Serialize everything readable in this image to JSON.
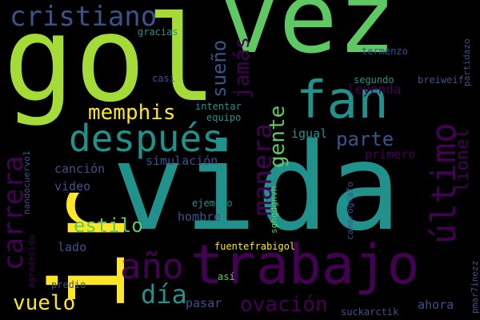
{
  "background": "#000000",
  "palette": {
    "yellow": "#fde725",
    "light_green": "#a5db36",
    "green": "#5ec962",
    "teal": "#21918c",
    "blue": "#3b528b",
    "purple": "#440154"
  },
  "words": {
    "vez": "vez",
    "gol": "gol",
    "vida": "vida",
    "ir": "ir",
    "trabajo": "trabajo",
    "fan": "fan",
    "despues": "después",
    "cristiano": "cristiano",
    "memphis": "memphis",
    "ultimo": "último",
    "carrera": "carrera",
    "manera": "manera",
    "ano": "año",
    "dia": "día",
    "vuelo": "vuelo",
    "ovacion": "ovación",
    "estilo": "estilo",
    "parte": "parte",
    "gente": "gente",
    "jamas": "jamás",
    "sueno": "sueño",
    "lionel": "lionel",
    "leyenda": "leyenda",
    "igual": "igual",
    "primero": "primero",
    "simulacion": "simulación",
    "cancion": "canción",
    "video": "video",
    "hombre": "hombre",
    "lado": "lado",
    "pasar": "pasar",
    "ahora": "ahora",
    "gracias": "gracias",
    "casi": "casi",
    "intentar": "intentar",
    "equipo": "equipo",
    "segundo": "segundo",
    "termenzo": "termenzo",
    "breiweif": "breiweif",
    "partidazo": "partidazo",
    "nandocuervo1": "nandocuervo1",
    "agradecido": "agradecido",
    "sghgdgnvn": "sghgdgnvn",
    "ejemplo": "ejemplo",
    "camarografo": "camarógrafo",
    "fuentefrabigol": "fuentefrabigol",
    "asi": "así",
    "predio": "predio",
    "suckarctik": "suckarctik",
    "pmar7inezz": "pmar7inezz"
  }
}
